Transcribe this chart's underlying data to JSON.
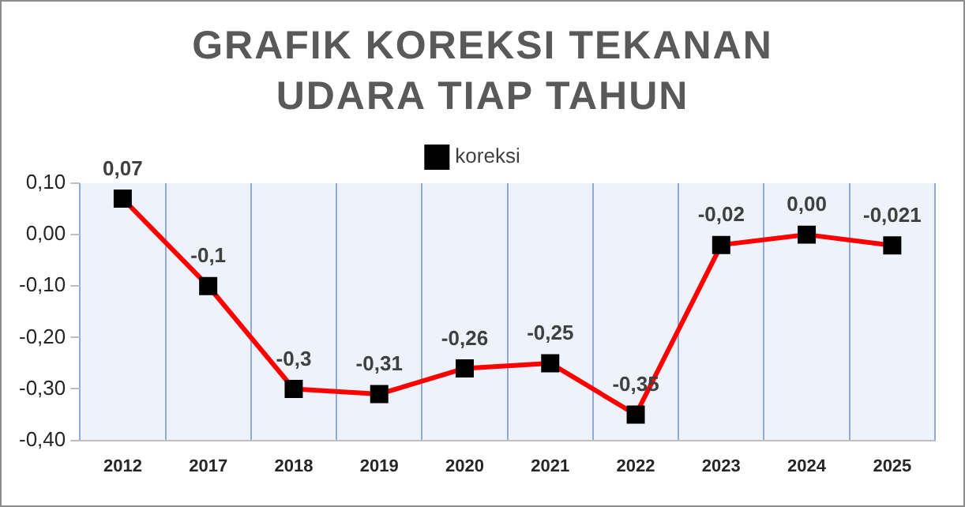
{
  "chart_data": {
    "type": "line",
    "title": "GRAFIK KOREKSI TEKANAN UDARA TIAP TAHUN",
    "categories": [
      "2012",
      "2017",
      "2018",
      "2019",
      "2020",
      "2021",
      "2022",
      "2023",
      "2024",
      "2025"
    ],
    "series": [
      {
        "name": "koreksi",
        "color": "#ff0000",
        "values": [
          0.07,
          -0.1,
          -0.3,
          -0.31,
          -0.26,
          -0.25,
          -0.35,
          -0.02,
          0,
          -0.021
        ],
        "value_labels": [
          "0,07",
          "-0,1",
          "-0,3",
          "-0,31",
          "-0,26",
          "-0,25",
          "-0,35",
          "-0,02",
          "0,00",
          "-0,021"
        ]
      }
    ],
    "ylim": [
      -0.4,
      0.1
    ],
    "yticks": [
      {
        "value": 0.1,
        "label": "0,10"
      },
      {
        "value": 0,
        "label": "0,00"
      },
      {
        "value": -0.1,
        "label": "-0,10"
      },
      {
        "value": -0.2,
        "label": "-0,20"
      },
      {
        "value": -0.3,
        "label": "-0,30"
      },
      {
        "value": -0.4,
        "label": "-0,40"
      }
    ],
    "grid": "x",
    "legend": "top",
    "marker": "square",
    "line_style": "solid"
  }
}
